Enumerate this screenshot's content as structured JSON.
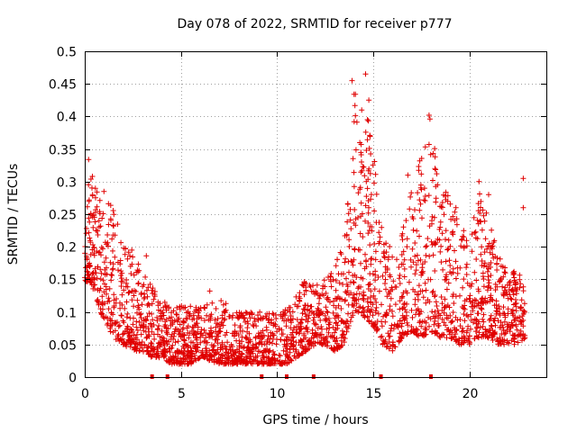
{
  "chart_data": {
    "type": "scatter",
    "title": "Day 078 of 2022, SRMTID for receiver p777",
    "xlabel": "GPS time / hours",
    "ylabel": "SRMTID / TECUs",
    "xlim": [
      0,
      24
    ],
    "ylim": [
      0,
      0.5
    ],
    "xticks": [
      0,
      5,
      10,
      15,
      20
    ],
    "xtick_labels": [
      "0",
      "5",
      "10",
      "15",
      "20"
    ],
    "yticks": [
      0,
      0.05,
      0.1,
      0.15,
      0.2,
      0.25,
      0.3,
      0.35,
      0.4,
      0.45,
      0.5
    ],
    "ytick_labels": [
      "0",
      "0.05",
      "0.1",
      "0.15",
      "0.2",
      "0.25",
      "0.3",
      "0.35",
      "0.4",
      "0.45",
      "0.5"
    ],
    "grid": true,
    "marker": "+",
    "color": "#e00000",
    "series": [
      {
        "name": "SRMTID",
        "envelope": {
          "x": [
            0.0,
            0.2,
            0.5,
            0.8,
            1.0,
            1.5,
            2.0,
            2.5,
            3.0,
            3.5,
            4.0,
            4.5,
            5.0,
            5.5,
            6.0,
            7.0,
            8.0,
            9.0,
            10.0,
            10.5,
            11.0,
            11.5,
            12.0,
            12.5,
            13.0,
            13.5,
            13.8,
            14.0,
            14.3,
            14.6,
            14.9,
            15.2,
            15.5,
            16.0,
            16.5,
            17.0,
            17.5,
            18.0,
            18.5,
            19.0,
            19.5,
            20.0,
            20.5,
            21.0,
            21.5,
            22.0,
            22.5,
            22.9
          ],
          "low": [
            0.14,
            0.15,
            0.13,
            0.1,
            0.09,
            0.06,
            0.05,
            0.04,
            0.04,
            0.03,
            0.03,
            0.02,
            0.02,
            0.02,
            0.03,
            0.02,
            0.02,
            0.02,
            0.02,
            0.02,
            0.03,
            0.04,
            0.05,
            0.05,
            0.04,
            0.05,
            0.08,
            0.1,
            0.1,
            0.09,
            0.08,
            0.07,
            0.05,
            0.04,
            0.06,
            0.07,
            0.06,
            0.07,
            0.06,
            0.06,
            0.05,
            0.05,
            0.06,
            0.06,
            0.05,
            0.05,
            0.05,
            0.06
          ],
          "high": [
            0.2,
            0.31,
            0.3,
            0.27,
            0.28,
            0.26,
            0.22,
            0.2,
            0.16,
            0.14,
            0.12,
            0.11,
            0.11,
            0.11,
            0.11,
            0.12,
            0.1,
            0.1,
            0.1,
            0.11,
            0.13,
            0.15,
            0.14,
            0.15,
            0.17,
            0.22,
            0.35,
            0.45,
            0.4,
            0.46,
            0.4,
            0.3,
            0.22,
            0.2,
            0.22,
            0.3,
            0.34,
            0.4,
            0.3,
            0.28,
            0.24,
            0.22,
            0.3,
            0.24,
            0.19,
            0.18,
            0.16,
            0.15
          ]
        },
        "count": 2600,
        "outliers": [
          [
            0.2,
            0.334
          ],
          [
            0.4,
            0.308
          ],
          [
            1.0,
            0.285
          ],
          [
            3.2,
            0.186
          ],
          [
            6.5,
            0.132
          ],
          [
            13.9,
            0.455
          ],
          [
            14.0,
            0.434
          ],
          [
            14.6,
            0.465
          ],
          [
            14.4,
            0.41
          ],
          [
            14.7,
            0.395
          ],
          [
            17.9,
            0.402
          ],
          [
            17.95,
            0.396
          ],
          [
            17.9,
            0.357
          ],
          [
            20.5,
            0.3
          ],
          [
            22.8,
            0.305
          ],
          [
            22.8,
            0.26
          ],
          [
            16.8,
            0.31
          ],
          [
            19.3,
            0.26
          ],
          [
            21.0,
            0.28
          ]
        ]
      }
    ],
    "gaps": [
      3.5,
      4.3,
      9.2,
      10.5,
      11.9,
      15.4,
      18.0
    ]
  }
}
